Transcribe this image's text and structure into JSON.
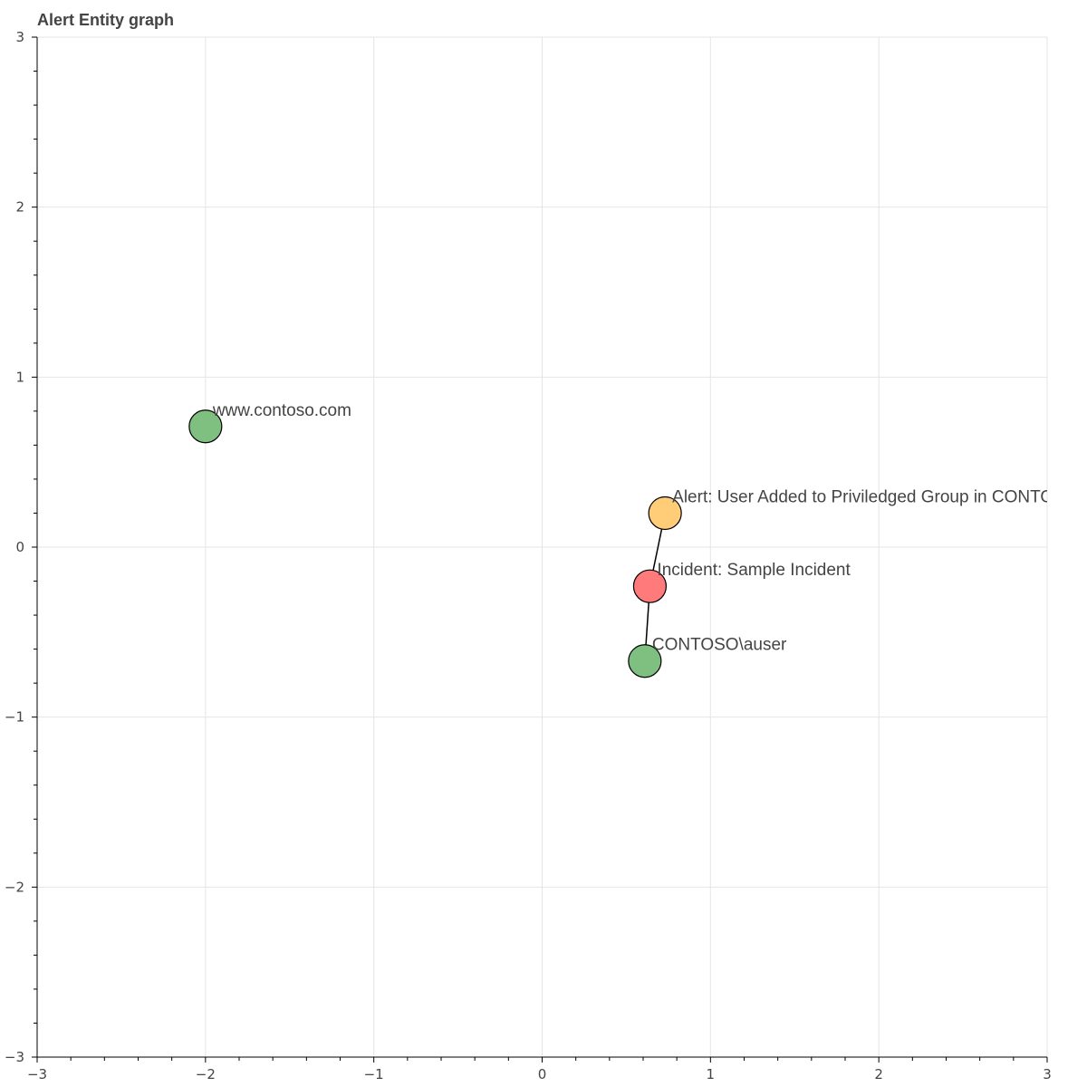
{
  "chart_data": {
    "type": "scatter",
    "title": "Alert Entity graph",
    "xlabel": "",
    "ylabel": "",
    "xlim": [
      -3,
      3
    ],
    "ylim": [
      -3,
      3
    ],
    "x_ticks": [
      -3,
      -2,
      -1,
      0,
      1,
      2,
      3
    ],
    "y_ticks": [
      -3,
      -2,
      -1,
      0,
      1,
      2,
      3
    ],
    "x_tick_labels": [
      "−3",
      "−2",
      "−1",
      "0",
      "1",
      "2",
      "3"
    ],
    "y_tick_labels": [
      "−3",
      "−2",
      "−1",
      "0",
      "1",
      "2",
      "3"
    ],
    "grid": true,
    "nodes": [
      {
        "id": "url",
        "label": "www.contoso.com",
        "x": -2.0,
        "y": 0.71,
        "color": "#7fbf7f"
      },
      {
        "id": "alert",
        "label": "Alert: User Added to Priviledged Group in CONTOSO Domain",
        "x": 0.73,
        "y": 0.2,
        "color": "#ffcc77"
      },
      {
        "id": "incident",
        "label": "Incident: Sample Incident",
        "x": 0.64,
        "y": -0.23,
        "color": "#ff7a7a"
      },
      {
        "id": "account",
        "label": "CONTOSO\\auser",
        "x": 0.61,
        "y": -0.67,
        "color": "#7fbf7f"
      }
    ],
    "edges": [
      {
        "source": "alert",
        "target": "incident"
      },
      {
        "source": "incident",
        "target": "account"
      }
    ]
  }
}
